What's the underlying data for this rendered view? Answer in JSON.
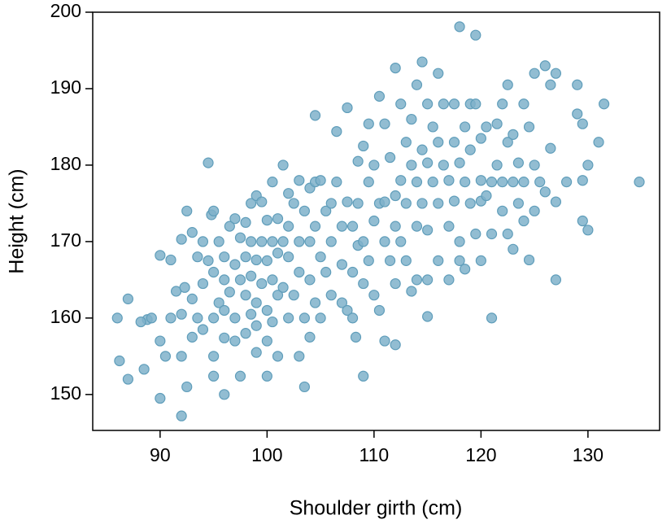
{
  "chart_data": {
    "type": "scatter",
    "x_label": "Shoulder girth (cm)",
    "y_label": "Height (cm)",
    "color": "#7fb1ca",
    "xlim": [
      83.7,
      136.7
    ],
    "xticks": [
      90,
      100,
      110,
      120,
      130
    ],
    "ylim": [
      145.3,
      200
    ],
    "yticks": [
      150,
      160,
      170,
      180,
      190,
      200
    ],
    "x": [
      86,
      86.2,
      87,
      87,
      88.5,
      88.8,
      88.2,
      89.2,
      90,
      90,
      90,
      90.5,
      91,
      91,
      91.5,
      92,
      92,
      92,
      92,
      92.3,
      92.5,
      92.5,
      93,
      93,
      93,
      93.5,
      93.5,
      94,
      94,
      94,
      94.5,
      94.5,
      94.8,
      95,
      95,
      95,
      95,
      95,
      95.5,
      95.5,
      96,
      96,
      96,
      96,
      96,
      96.5,
      96.5,
      97,
      97,
      97,
      97,
      97.5,
      97.5,
      97.5,
      98,
      98,
      98,
      98,
      98.5,
      98.5,
      98.5,
      98.5,
      99,
      99,
      99,
      99,
      99,
      99.5,
      99.5,
      99.5,
      100,
      100,
      100,
      100,
      100,
      100.5,
      100.5,
      100.5,
      100.5,
      101,
      101,
      101,
      101,
      101.5,
      101.5,
      101.5,
      102,
      102,
      102,
      102,
      102.5,
      102.5,
      103,
      103,
      103,
      103,
      103.5,
      103.5,
      103.5,
      104,
      104,
      104,
      104,
      104.5,
      104.5,
      104.5,
      104.5,
      105,
      105,
      105,
      105.5,
      105.5,
      106,
      106,
      106,
      106.5,
      106.5,
      107,
      107,
      107,
      107.5,
      107.5,
      107.5,
      108,
      108,
      108,
      108.3,
      108.5,
      108.5,
      108.5,
      109,
      109,
      109,
      109,
      109.5,
      109.5,
      109.5,
      110,
      110,
      110,
      110.5,
      110.5,
      110.5,
      111,
      111,
      111,
      111,
      111.5,
      111.5,
      112,
      112,
      112,
      112,
      112,
      112.5,
      112.5,
      112.5,
      113,
      113,
      113,
      113.5,
      113.5,
      113.5,
      114,
      114,
      114,
      114,
      114.5,
      114.5,
      114.5,
      115,
      115,
      115,
      115,
      115,
      115.5,
      115.5,
      116,
      116,
      116,
      116,
      116.5,
      116.5,
      117,
      117,
      117,
      117.5,
      117.5,
      117.5,
      118,
      118,
      118,
      118,
      118.5,
      118.5,
      118.5,
      119,
      119,
      119,
      119.5,
      119.5,
      119.5,
      120,
      120,
      120,
      120,
      120.5,
      120.5,
      121,
      121,
      121,
      121.5,
      121.5,
      122,
      122,
      122,
      122.5,
      122.5,
      122.5,
      123,
      123,
      123,
      123.5,
      123.5,
      124,
      124,
      124,
      124.5,
      124.5,
      125,
      125,
      125,
      125.5,
      126,
      126,
      126.5,
      126.5,
      127,
      127,
      127,
      128,
      129,
      129,
      129.5,
      129.5,
      129.5,
      130,
      130,
      131,
      131.5,
      134.8
    ],
    "values": [
      160,
      154.4,
      152,
      162.5,
      153.3,
      159.8,
      159.5,
      160,
      168.2,
      149.5,
      157,
      155,
      160,
      167.6,
      163.5,
      147.2,
      155,
      160.5,
      170.3,
      164,
      174,
      151,
      157.5,
      162.5,
      171.2,
      160,
      168,
      158.5,
      164.5,
      170,
      180.3,
      167.5,
      173.5,
      174,
      160,
      155,
      152.4,
      166,
      170,
      162,
      150,
      168,
      165,
      161,
      157.4,
      172,
      163.4,
      173,
      167,
      160,
      157,
      170.5,
      165,
      152.4,
      172.5,
      168,
      163,
      158,
      175,
      170,
      165.5,
      160.5,
      176,
      167.6,
      162,
      159,
      155.5,
      175.2,
      170,
      164.5,
      152.4,
      172.8,
      167.5,
      161,
      157,
      177.8,
      170,
      165,
      159.5,
      173,
      168.5,
      163,
      155,
      180,
      170,
      164,
      176.3,
      172,
      168,
      160,
      175,
      163,
      178,
      155,
      166,
      170,
      151,
      174,
      160,
      177,
      170,
      165,
      157.5,
      186.5,
      177.8,
      172,
      162,
      178,
      168,
      160,
      174,
      166,
      175,
      170,
      163,
      177.8,
      184.4,
      172,
      167,
      162,
      187.5,
      175.2,
      161,
      172,
      166,
      160,
      157.5,
      180.5,
      175,
      169.5,
      182.5,
      152.4,
      164.5,
      170,
      185.4,
      177.8,
      167.5,
      180,
      172.7,
      163,
      189,
      175,
      161,
      185.4,
      175.2,
      170,
      157,
      181,
      167.5,
      192.7,
      176,
      172,
      156.5,
      164.5,
      188,
      178,
      170,
      183,
      175,
      167.5,
      186,
      180,
      163.5,
      190.5,
      177.8,
      172,
      165,
      193.5,
      182,
      175,
      188,
      180.3,
      171.5,
      160.2,
      165,
      185,
      177.8,
      192,
      183,
      175,
      167.5,
      188,
      180,
      178,
      172,
      165,
      188,
      183,
      175.3,
      198.1,
      180.3,
      170,
      167.5,
      185,
      177.8,
      166.4,
      188,
      182,
      175,
      197,
      188,
      171,
      183.5,
      178,
      175.3,
      167.5,
      185,
      176,
      177.8,
      171,
      160,
      185.4,
      180,
      188,
      177.8,
      174,
      190.5,
      183,
      171,
      184,
      177.8,
      169,
      180.3,
      175,
      188,
      177.8,
      172.7,
      185,
      167.6,
      192,
      180,
      174,
      177.8,
      193,
      176.5,
      190.5,
      182.2,
      192,
      175.2,
      165,
      177.8,
      190.5,
      186.7,
      185.4,
      172.7,
      178,
      180,
      171.5,
      183,
      188,
      177.8
    ]
  }
}
